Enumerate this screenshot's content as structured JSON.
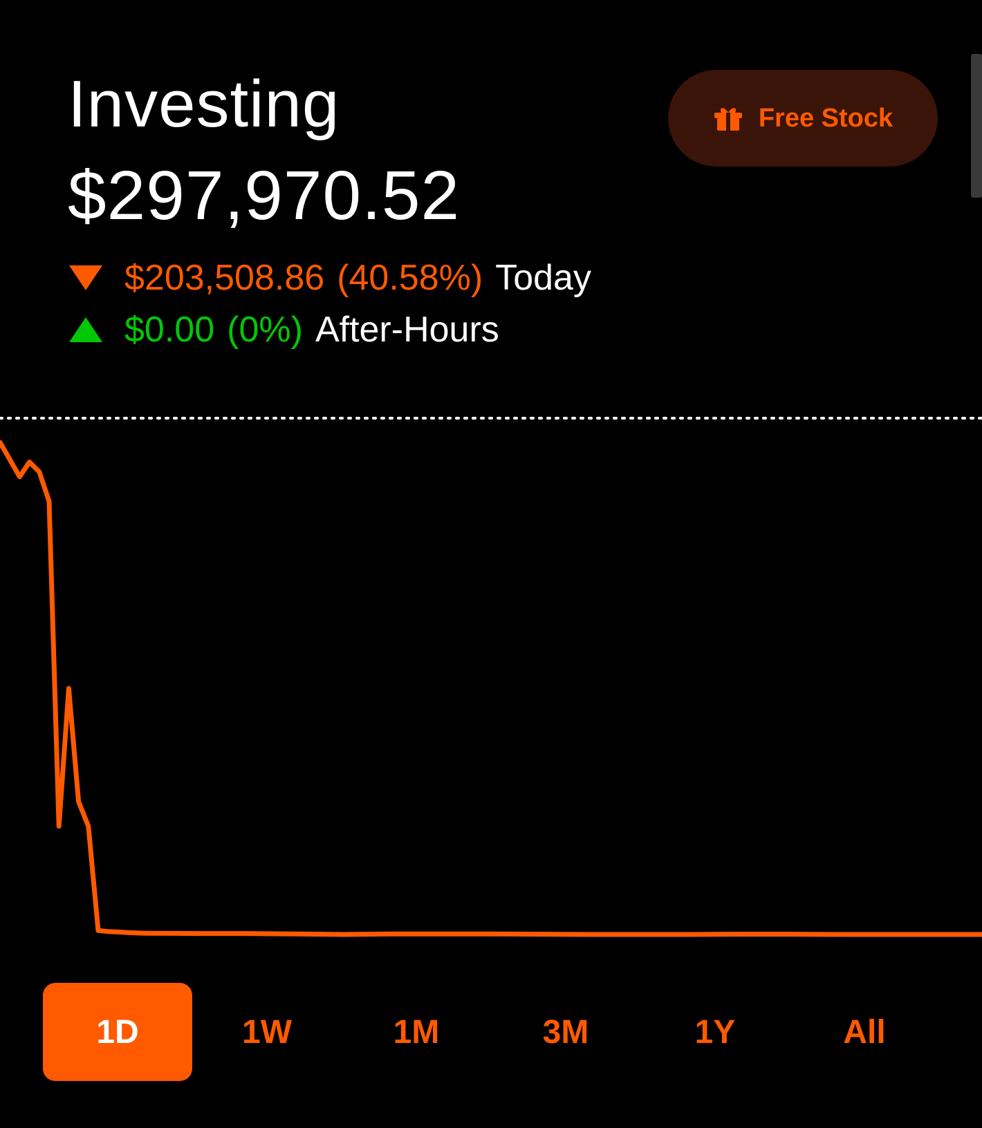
{
  "header": {
    "title": "Investing",
    "portfolio_value": "$297,970.52"
  },
  "today_change": {
    "direction": "down",
    "amount": "$203,508.86",
    "percent": "(40.58%)",
    "label": "Today",
    "color": "#ff5a00"
  },
  "after_hours_change": {
    "direction": "up",
    "amount": "$0.00",
    "percent": "(0%)",
    "label": "After-Hours",
    "color": "#00c805"
  },
  "promo_button": {
    "label": "Free Stock",
    "icon": "gift-icon"
  },
  "chart_data": {
    "type": "line",
    "color": "#ff5a00",
    "grid": false,
    "reference_line": "dotted",
    "x": [
      0,
      2,
      3,
      4,
      5,
      6,
      7,
      8,
      9,
      10,
      11,
      12,
      13,
      14,
      15,
      20,
      25,
      30,
      35,
      40,
      45,
      50,
      55,
      60,
      65,
      70,
      75,
      80,
      85,
      90,
      95,
      100
    ],
    "y": [
      100,
      93,
      96,
      94,
      88,
      22,
      50,
      27,
      22,
      0.8,
      0.6,
      0.5,
      0.4,
      0.3,
      0.25,
      0.2,
      0.2,
      0.1,
      0,
      0.1,
      0.1,
      0.1,
      0.05,
      0,
      0,
      0,
      0.05,
      0.05,
      0,
      0,
      0,
      0
    ],
    "ylim": [
      0,
      100
    ]
  },
  "ranges": {
    "items": [
      {
        "label": "1D",
        "active": true
      },
      {
        "label": "1W",
        "active": false
      },
      {
        "label": "1M",
        "active": false
      },
      {
        "label": "3M",
        "active": false
      },
      {
        "label": "1Y",
        "active": false
      },
      {
        "label": "All",
        "active": false
      }
    ]
  }
}
